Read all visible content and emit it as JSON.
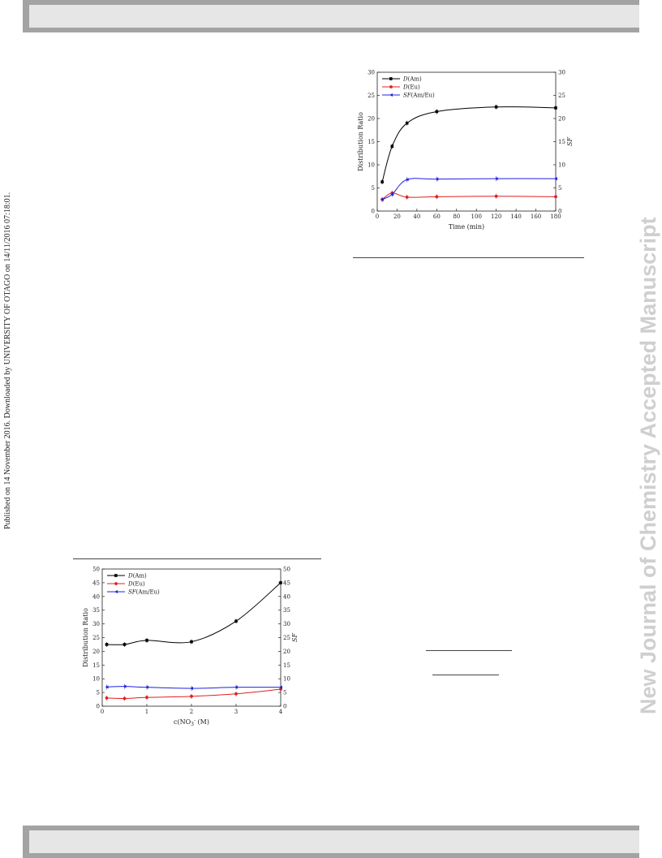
{
  "side_note": "Published on 14 November 2016. Downloaded by UNIVERSITY OF OTAGO on 14/11/2016 07:18:01.",
  "watermark": "New Journal of Chemistry Accepted Manuscript",
  "chart_data": [
    {
      "type": "line",
      "xlabel": "Time (min)",
      "ylabel": "Distribution Ratio",
      "y2label": "SF",
      "xlim": [
        0,
        180
      ],
      "ylim": [
        0,
        30
      ],
      "y2lim": [
        0,
        30
      ],
      "xticks": [
        0,
        20,
        40,
        60,
        80,
        100,
        120,
        140,
        160,
        180
      ],
      "yticks": [
        0,
        5,
        10,
        15,
        20,
        25,
        30
      ],
      "legend_position": "top-left",
      "series": [
        {
          "name": "D(Am)",
          "color": "#000000",
          "marker": "square",
          "x": [
            5,
            15,
            30,
            60,
            120,
            180
          ],
          "y": [
            6.3,
            14,
            19,
            21.5,
            22.5,
            22.3
          ]
        },
        {
          "name": "D(Eu)",
          "color": "#e02020",
          "marker": "circle",
          "x": [
            5,
            15,
            30,
            60,
            120,
            180
          ],
          "y": [
            2.5,
            3.9,
            3,
            3.1,
            3.2,
            3.1
          ]
        },
        {
          "name": "SF(Am/Eu)",
          "color": "#2020e0",
          "marker": "triangle",
          "x": [
            5,
            15,
            30,
            60,
            120,
            180
          ],
          "y": [
            2.5,
            3.6,
            6.8,
            6.9,
            7.0,
            7.0
          ]
        }
      ]
    },
    {
      "type": "line",
      "xlabel": "c(NO3-) (M)",
      "ylabel": "Distribution Ratio",
      "y2label": "SF",
      "xlim": [
        0,
        4
      ],
      "ylim": [
        0,
        50
      ],
      "y2lim": [
        0,
        50
      ],
      "xticks": [
        0,
        1,
        2,
        3,
        4
      ],
      "yticks": [
        0,
        5,
        10,
        15,
        20,
        25,
        30,
        35,
        40,
        45,
        50
      ],
      "legend_position": "top-left",
      "series": [
        {
          "name": "D(Am)",
          "color": "#000000",
          "marker": "square",
          "x": [
            0.1,
            0.5,
            1,
            2,
            3,
            4
          ],
          "y": [
            22.5,
            22.5,
            24,
            23.5,
            31,
            45
          ]
        },
        {
          "name": "D(Eu)",
          "color": "#e02020",
          "marker": "circle",
          "x": [
            0.1,
            0.5,
            1,
            2,
            3,
            4
          ],
          "y": [
            3.0,
            2.8,
            3.2,
            3.6,
            4.5,
            6.2
          ]
        },
        {
          "name": "SF(Am/Eu)",
          "color": "#2020e0",
          "marker": "triangle",
          "x": [
            0.1,
            0.5,
            1,
            2,
            3,
            4
          ],
          "y": [
            7.0,
            7.2,
            6.9,
            6.5,
            6.9,
            6.9
          ]
        }
      ]
    }
  ]
}
